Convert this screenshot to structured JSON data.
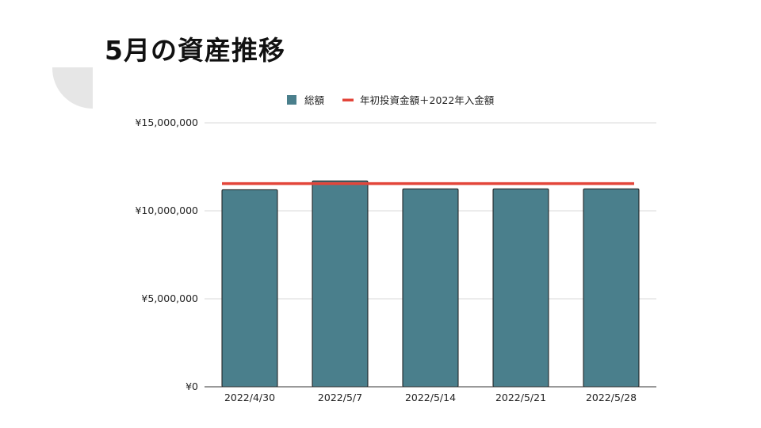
{
  "slide": {
    "title": "5月の資産推移"
  },
  "colors": {
    "bar_fill": "#4a7f8c",
    "bar_stroke": "#1a1a1a",
    "line": "#e3453a",
    "gridline": "#d9d9d9",
    "axis": "#333333",
    "deco_shape": "#e6e6e6"
  },
  "chart_data": {
    "type": "bar",
    "title": "",
    "xlabel": "",
    "ylabel": "",
    "categories": [
      "2022/4/30",
      "2022/5/7",
      "2022/5/14",
      "2022/5/21",
      "2022/5/28"
    ],
    "series": [
      {
        "name": "総額",
        "type": "bar",
        "values": [
          11200000,
          11700000,
          11250000,
          11250000,
          11250000
        ]
      },
      {
        "name": "年初投資金額＋2022年入金額",
        "type": "line",
        "values": [
          11550000,
          11550000,
          11550000,
          11550000,
          11550000
        ]
      }
    ],
    "ylim": [
      0,
      15000000
    ],
    "yticks": [
      0,
      5000000,
      10000000,
      15000000
    ],
    "ytick_labels": [
      "¥0",
      "¥5,000,000",
      "¥10,000,000",
      "¥15,000,000"
    ],
    "grid": true,
    "legend_position": "top"
  }
}
